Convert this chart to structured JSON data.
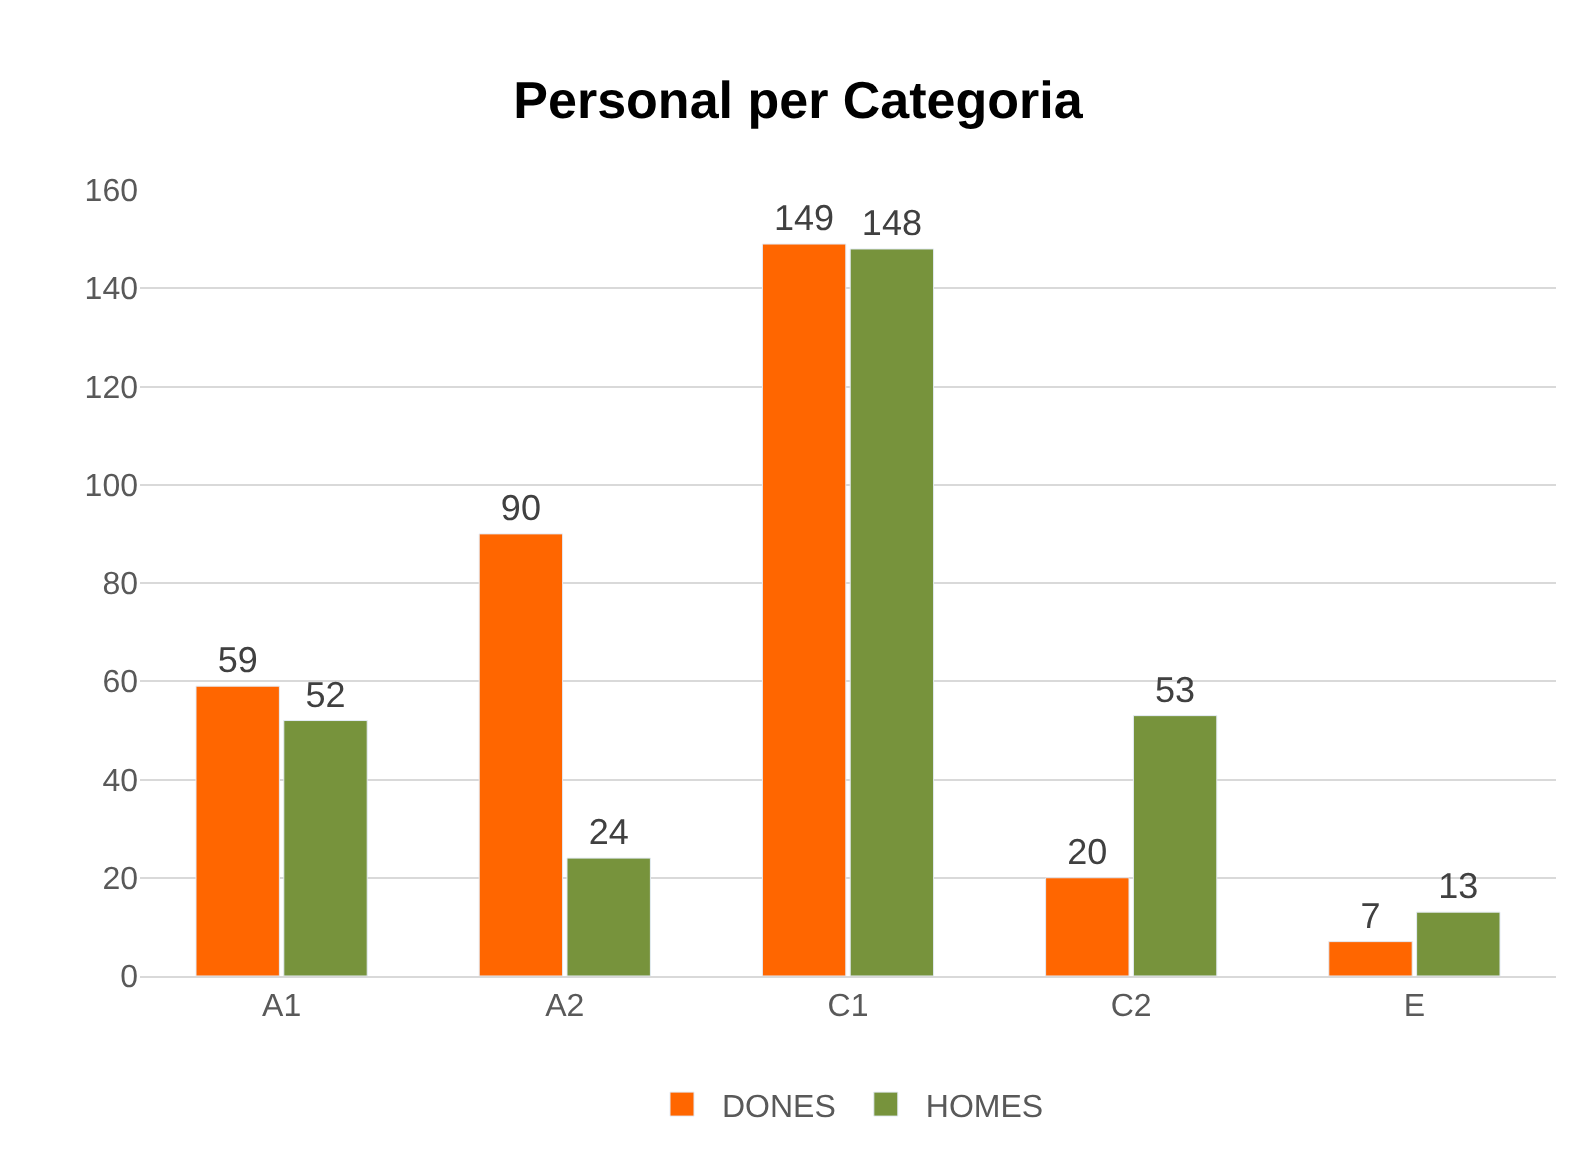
{
  "chart_data": {
    "type": "bar",
    "title": "Personal per Categoria",
    "categories": [
      "A1",
      "A2",
      "C1",
      "C2",
      "E"
    ],
    "series": [
      {
        "name": "DONES",
        "color": "#ff6600",
        "values": [
          59,
          90,
          149,
          20,
          7
        ]
      },
      {
        "name": "HOMES",
        "color": "#77933c",
        "values": [
          52,
          24,
          148,
          53,
          13
        ]
      }
    ],
    "ylim": [
      0,
      160
    ],
    "yticks": [
      0,
      20,
      40,
      60,
      80,
      100,
      120,
      140,
      160
    ],
    "grid": "y",
    "legend": "bottom",
    "data_labels": true
  }
}
